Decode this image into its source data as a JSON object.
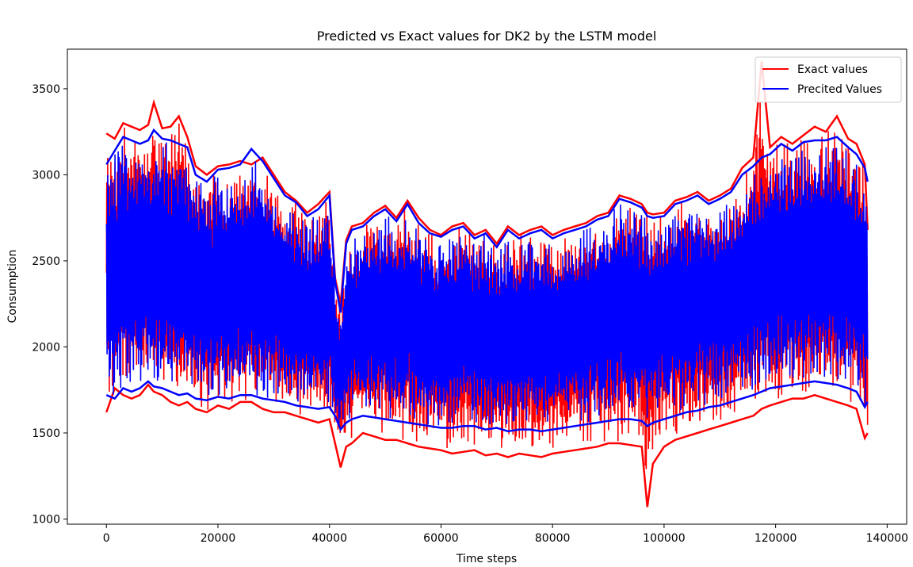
{
  "chart_data": {
    "type": "line",
    "title": "Predicted vs Exact values for DK2 by the LSTM model",
    "xlabel": "Time steps",
    "ylabel": "Consumption",
    "xlim": [
      -7000,
      143500
    ],
    "ylim": [
      970,
      3730
    ],
    "xticks": [
      0,
      20000,
      40000,
      60000,
      80000,
      100000,
      120000,
      140000
    ],
    "yticks": [
      1000,
      1500,
      2000,
      2500,
      3000,
      3500
    ],
    "grid": false,
    "legend_position": "top-right",
    "series": [
      {
        "name": "Exact values",
        "color": "#ff0000",
        "envelope": {
          "x": [
            0,
            1500,
            3000,
            4500,
            6000,
            7500,
            8500,
            10000,
            11500,
            13000,
            14500,
            16000,
            18000,
            20000,
            22000,
            24000,
            26000,
            28000,
            30000,
            32000,
            34000,
            36000,
            38000,
            40000,
            41000,
            42000,
            43000,
            44000,
            46000,
            48000,
            50000,
            52000,
            54000,
            56000,
            58000,
            60000,
            62000,
            64000,
            66000,
            68000,
            70000,
            72000,
            74000,
            76000,
            78000,
            80000,
            82000,
            84000,
            86000,
            88000,
            90000,
            92000,
            94000,
            96000,
            97000,
            98000,
            100000,
            102000,
            104000,
            106000,
            108000,
            110000,
            112000,
            114000,
            116000,
            117500,
            119000,
            121000,
            123000,
            125000,
            127000,
            129000,
            131000,
            133000,
            134500,
            136000,
            136500
          ],
          "max": [
            3240,
            3210,
            3300,
            3280,
            3260,
            3290,
            3420,
            3270,
            3280,
            3340,
            3220,
            3050,
            3000,
            3050,
            3060,
            3080,
            3060,
            3100,
            3000,
            2900,
            2850,
            2780,
            2830,
            2900,
            2400,
            2250,
            2620,
            2700,
            2720,
            2780,
            2820,
            2750,
            2850,
            2750,
            2680,
            2650,
            2700,
            2720,
            2650,
            2680,
            2600,
            2700,
            2650,
            2680,
            2700,
            2650,
            2680,
            2700,
            2720,
            2760,
            2780,
            2880,
            2860,
            2830,
            2780,
            2770,
            2780,
            2850,
            2870,
            2900,
            2850,
            2880,
            2920,
            3040,
            3100,
            3660,
            3160,
            3220,
            3180,
            3230,
            3280,
            3250,
            3340,
            3210,
            3180,
            3060,
            2680
          ],
          "min": [
            1620,
            1760,
            1720,
            1700,
            1720,
            1780,
            1740,
            1720,
            1680,
            1660,
            1680,
            1640,
            1620,
            1660,
            1640,
            1680,
            1680,
            1640,
            1620,
            1620,
            1600,
            1580,
            1560,
            1580,
            1440,
            1300,
            1420,
            1440,
            1500,
            1480,
            1460,
            1460,
            1440,
            1420,
            1410,
            1400,
            1380,
            1390,
            1400,
            1370,
            1380,
            1360,
            1380,
            1370,
            1360,
            1380,
            1390,
            1400,
            1410,
            1420,
            1440,
            1440,
            1430,
            1420,
            1070,
            1320,
            1420,
            1460,
            1480,
            1500,
            1520,
            1540,
            1560,
            1580,
            1600,
            1640,
            1660,
            1680,
            1700,
            1700,
            1720,
            1700,
            1680,
            1660,
            1640,
            1470,
            1500
          ]
        }
      },
      {
        "name": "Precited Values",
        "color": "#0000ff",
        "envelope": {
          "x": [
            0,
            1500,
            3000,
            4500,
            6000,
            7500,
            8500,
            10000,
            11500,
            13000,
            14500,
            16000,
            18000,
            20000,
            22000,
            24000,
            26000,
            28000,
            30000,
            32000,
            34000,
            36000,
            38000,
            40000,
            41000,
            42000,
            43000,
            44000,
            46000,
            48000,
            50000,
            52000,
            54000,
            56000,
            58000,
            60000,
            62000,
            64000,
            66000,
            68000,
            70000,
            72000,
            74000,
            76000,
            78000,
            80000,
            82000,
            84000,
            86000,
            88000,
            90000,
            92000,
            94000,
            96000,
            97000,
            98000,
            100000,
            102000,
            104000,
            106000,
            108000,
            110000,
            112000,
            114000,
            116000,
            117500,
            119000,
            121000,
            123000,
            125000,
            127000,
            129000,
            131000,
            133000,
            134500,
            136000,
            136500
          ],
          "max": [
            3060,
            3140,
            3220,
            3200,
            3180,
            3200,
            3260,
            3210,
            3200,
            3180,
            3160,
            3000,
            2960,
            3030,
            3040,
            3060,
            3150,
            3080,
            2980,
            2880,
            2840,
            2760,
            2800,
            2880,
            2380,
            2200,
            2600,
            2680,
            2700,
            2760,
            2800,
            2730,
            2830,
            2720,
            2660,
            2640,
            2680,
            2700,
            2630,
            2660,
            2580,
            2680,
            2630,
            2660,
            2680,
            2630,
            2660,
            2680,
            2700,
            2740,
            2760,
            2860,
            2840,
            2810,
            2760,
            2750,
            2760,
            2830,
            2850,
            2880,
            2830,
            2860,
            2900,
            3000,
            3050,
            3100,
            3120,
            3180,
            3140,
            3190,
            3200,
            3200,
            3220,
            3160,
            3120,
            3040,
            2960
          ],
          "min": [
            1720,
            1700,
            1760,
            1740,
            1760,
            1800,
            1770,
            1760,
            1740,
            1720,
            1730,
            1700,
            1690,
            1710,
            1700,
            1720,
            1720,
            1700,
            1690,
            1680,
            1660,
            1650,
            1640,
            1650,
            1600,
            1520,
            1560,
            1580,
            1600,
            1590,
            1580,
            1570,
            1560,
            1550,
            1540,
            1530,
            1530,
            1540,
            1540,
            1520,
            1530,
            1510,
            1520,
            1520,
            1510,
            1520,
            1530,
            1540,
            1550,
            1560,
            1570,
            1580,
            1580,
            1570,
            1540,
            1560,
            1580,
            1600,
            1620,
            1630,
            1650,
            1660,
            1680,
            1700,
            1720,
            1740,
            1760,
            1770,
            1780,
            1790,
            1800,
            1790,
            1780,
            1760,
            1740,
            1650,
            1680
          ]
        }
      }
    ]
  }
}
